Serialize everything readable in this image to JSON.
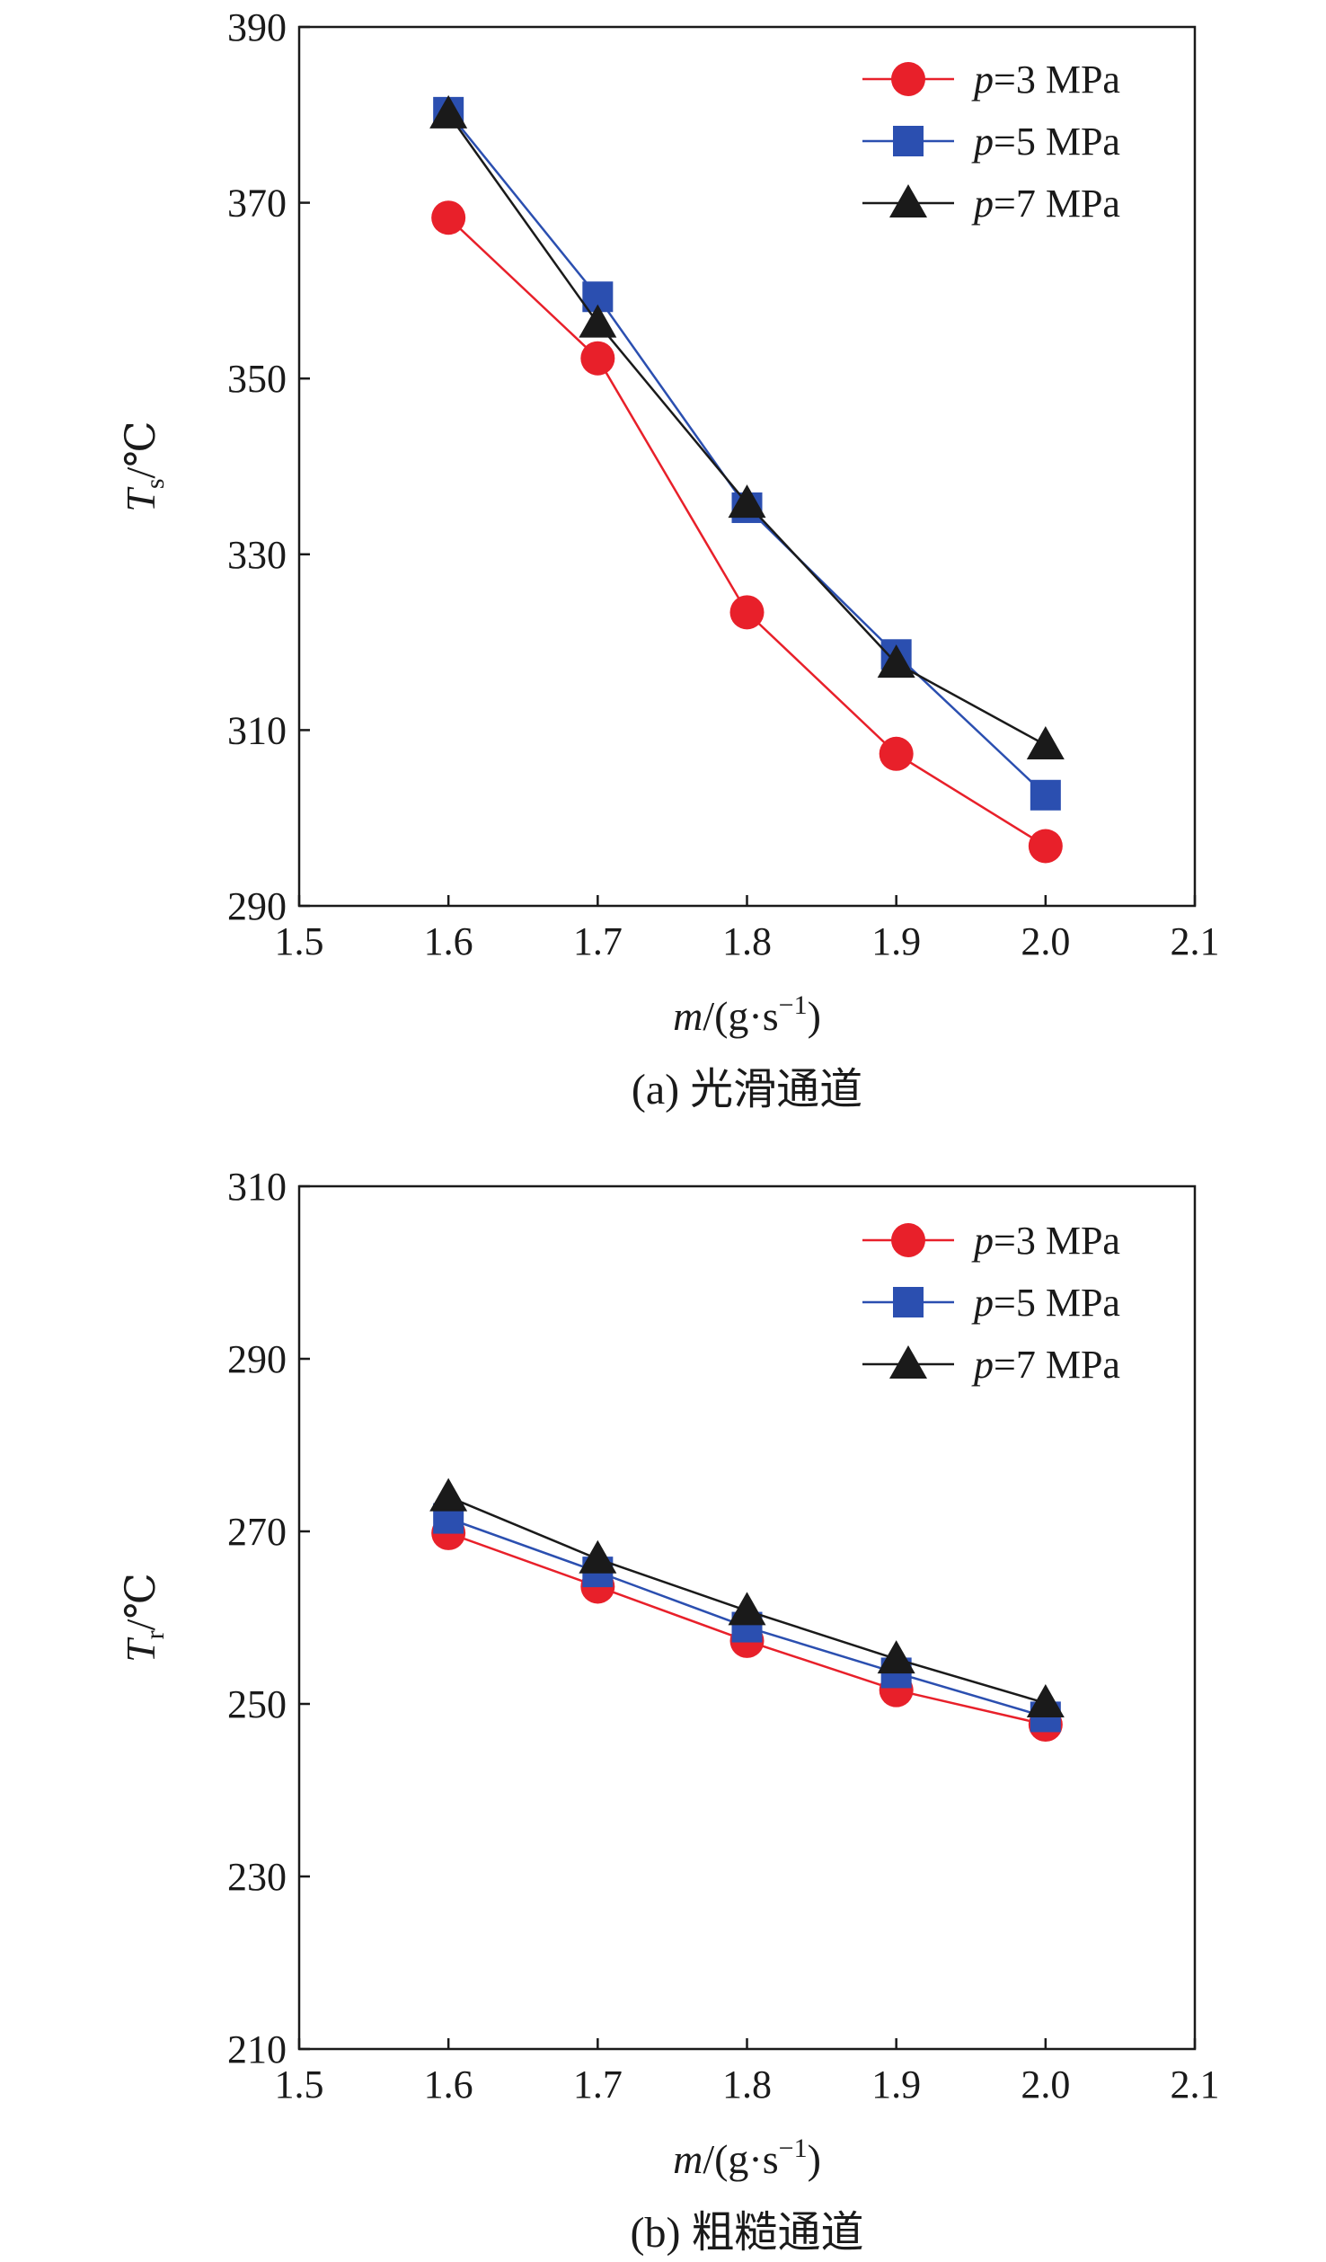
{
  "chart_data": [
    {
      "type": "line",
      "panel_label": "(a) 光滑通道",
      "ylabel": {
        "main": "T",
        "sub": "s",
        "unit": "/℃"
      },
      "xlabel": {
        "main": "m",
        "unit": "/(g·s",
        "sup": "−1",
        "close": ")"
      },
      "xlim": [
        1.5,
        2.1
      ],
      "ylim": [
        290,
        390
      ],
      "xticks": [
        "1.5",
        "1.6",
        "1.7",
        "1.8",
        "1.9",
        "2.0",
        "2.1"
      ],
      "yticks": [
        "290",
        "310",
        "330",
        "350",
        "370",
        "390"
      ],
      "x": [
        1.6,
        1.7,
        1.8,
        1.9,
        2.0
      ],
      "legend_position": "top-right",
      "grid": false,
      "series": [
        {
          "name_var": "p",
          "name_rest": "=3 MPa",
          "color": "#e8202a",
          "marker": "circle",
          "values": [
            368.3,
            352.3,
            323.4,
            307.3,
            296.8
          ]
        },
        {
          "name_var": "p",
          "name_rest": "=5 MPa",
          "color": "#2b4fb0",
          "marker": "square",
          "values": [
            380.3,
            359.3,
            335.3,
            318.6,
            302.6
          ]
        },
        {
          "name_var": "p",
          "name_rest": "=7 MPa",
          "color": "#1a1a1a",
          "marker": "triangle",
          "values": [
            380.1,
            356.3,
            335.8,
            317.6,
            308.3
          ]
        }
      ]
    },
    {
      "type": "line",
      "panel_label": "(b) 粗糙通道",
      "ylabel": {
        "main": "T",
        "sub": "r",
        "unit": "/℃"
      },
      "xlabel": {
        "main": "m",
        "unit": "/(g·s",
        "sup": "−1",
        "close": ")"
      },
      "xlim": [
        1.5,
        2.1
      ],
      "ylim": [
        210,
        310
      ],
      "xticks": [
        "1.5",
        "1.6",
        "1.7",
        "1.8",
        "1.9",
        "2.0",
        "2.1"
      ],
      "yticks": [
        "210",
        "230",
        "250",
        "270",
        "290",
        "310"
      ],
      "x": [
        1.6,
        1.7,
        1.8,
        1.9,
        2.0
      ],
      "legend_position": "top-right",
      "grid": false,
      "series": [
        {
          "name_var": "p",
          "name_rest": "=3 MPa",
          "color": "#e8202a",
          "marker": "circle",
          "values": [
            269.8,
            263.6,
            257.3,
            251.6,
            247.6
          ]
        },
        {
          "name_var": "p",
          "name_rest": "=5 MPa",
          "color": "#2b4fb0",
          "marker": "square",
          "values": [
            271.5,
            265.3,
            258.9,
            253.6,
            248.5
          ]
        },
        {
          "name_var": "p",
          "name_rest": "=7 MPa",
          "color": "#1a1a1a",
          "marker": "triangle",
          "values": [
            274.0,
            266.8,
            260.8,
            255.2,
            250.1
          ]
        }
      ]
    }
  ]
}
